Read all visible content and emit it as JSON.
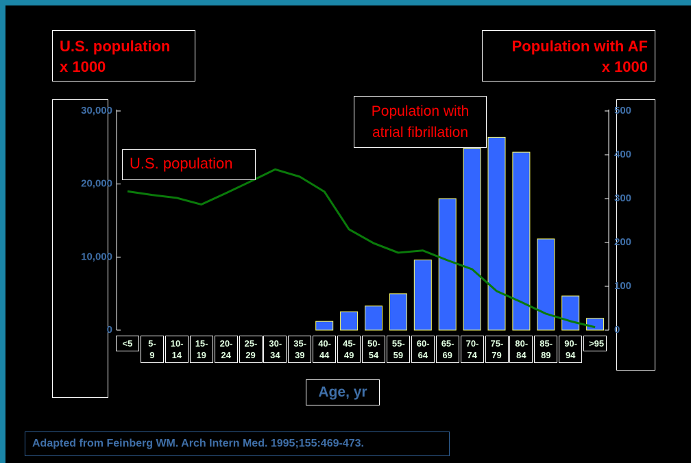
{
  "chart_data": {
    "type": "combo",
    "y_label": [
      "U.S. population",
      "x 1000"
    ],
    "y2_label": [
      "Population with AF",
      "x 1000"
    ],
    "x_label": "Age, yr",
    "source": "Adapted from Feinberg WM. Arch Intern Med. 1995;155:469-473.",
    "categories": [
      "<5",
      "5-9",
      "10-14",
      "15-19",
      "20-24",
      "25-29",
      "30-34",
      "35-39",
      "40-44",
      "45-49",
      "50-54",
      "55-59",
      "60-64",
      "65-69",
      "70-74",
      "75-79",
      "80-84",
      "85-89",
      "90-94",
      ">95"
    ],
    "ylim": [
      0,
      30000
    ],
    "yticks": [
      0,
      {
        "value": 10000,
        "label": "10,000"
      },
      {
        "value": 20000,
        "label": "20,000"
      },
      {
        "value": 30000,
        "label": "30,000"
      }
    ],
    "y2lim": [
      0,
      500
    ],
    "y2ticks": [
      0,
      100,
      200,
      300,
      400,
      500
    ],
    "series": [
      {
        "name": "Population with atrial fibrillation",
        "type": "bar",
        "axis": "y2",
        "color": "#3366ff",
        "values": [
          0,
          0,
          0,
          0,
          0,
          0,
          0,
          0,
          20,
          42,
          55,
          83,
          160,
          300,
          415,
          440,
          406,
          208,
          78,
          27
        ]
      },
      {
        "name": "U.S. population",
        "type": "line",
        "axis": "y",
        "color": "#0a7a0a",
        "values": [
          19000,
          18500,
          18100,
          17200,
          18750,
          20350,
          22000,
          21000,
          18950,
          13800,
          11900,
          10600,
          10900,
          9560,
          8340,
          5340,
          3840,
          2250,
          1220,
          400
        ]
      }
    ]
  }
}
